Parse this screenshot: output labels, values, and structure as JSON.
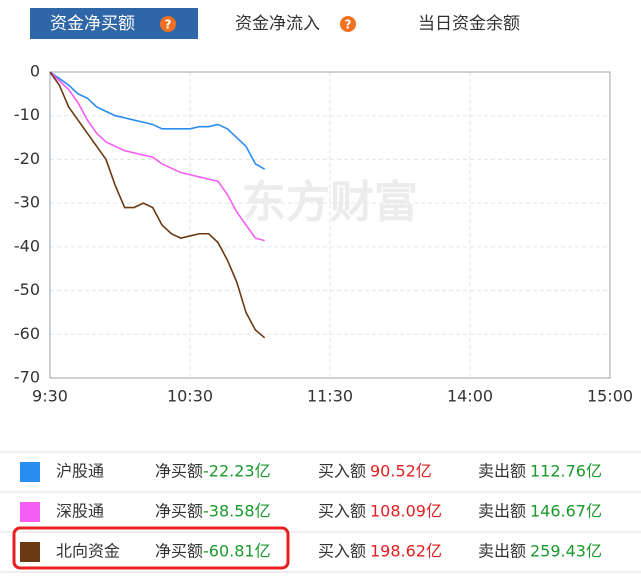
{
  "tabs": [
    "资金净买额",
    "资金净流入",
    "当日资金余额"
  ],
  "chart_data": {
    "type": "line",
    "watermark": "东方财富",
    "x": [
      0,
      4,
      8,
      12,
      16,
      20,
      24,
      28,
      32,
      36,
      40,
      44,
      48,
      52,
      56,
      60,
      64,
      68,
      72,
      76,
      80,
      84,
      88,
      92
    ],
    "xlim": [
      0,
      240
    ],
    "xticks": [
      {
        "value": 0,
        "label": "9:30"
      },
      {
        "value": 60,
        "label": "10:30"
      },
      {
        "value": 120,
        "label": "11:30"
      },
      {
        "value": 180,
        "label": "14:00"
      },
      {
        "value": 240,
        "label": "15:00"
      }
    ],
    "ylim": [
      -70,
      0
    ],
    "yticks": [
      0,
      -10,
      -20,
      -30,
      -40,
      -50,
      -60,
      -70
    ],
    "grid": true,
    "series": [
      {
        "name": "沪股通",
        "color": "#2b8cf0",
        "values": [
          0,
          -1.5,
          -3,
          -5,
          -6,
          -8,
          -9,
          -10,
          -10.5,
          -11,
          -11.5,
          -12,
          -13,
          -13,
          -13,
          -13,
          -12.5,
          -12.5,
          -12,
          -13,
          -15,
          -17,
          -21,
          -22.23
        ]
      },
      {
        "name": "深股通",
        "color": "#f55ef5",
        "values": [
          0,
          -2,
          -4,
          -7,
          -11,
          -14,
          -16,
          -17,
          -18,
          -18.5,
          -19,
          -19.5,
          -21,
          -22,
          -23,
          -23.5,
          -24,
          -24.5,
          -25,
          -28,
          -32,
          -35,
          -38,
          -38.58
        ]
      },
      {
        "name": "北向资金",
        "color": "#6b3a12",
        "values": [
          0,
          -3,
          -8,
          -11,
          -14,
          -17,
          -20,
          -26,
          -31,
          -31,
          -30,
          -31,
          -35,
          -37,
          -38,
          -37.5,
          -37,
          -37,
          -39,
          -43,
          -48,
          -55,
          -59,
          -60.81
        ]
      }
    ]
  },
  "table": {
    "rows": [
      {
        "net_label": "净买额",
        "net": "-22.23亿",
        "buy_label": "买入额",
        "buy": "90.52亿",
        "sell_label": "卖出额",
        "sell": "112.76亿"
      },
      {
        "net_label": "净买额",
        "net": "-38.58亿",
        "buy_label": "买入额",
        "buy": "108.09亿",
        "sell_label": "卖出额",
        "sell": "146.67亿"
      },
      {
        "net_label": "净买额",
        "net": "-60.81亿",
        "buy_label": "买入额",
        "buy": "198.62亿",
        "sell_label": "卖出额",
        "sell": "259.43亿"
      }
    ]
  }
}
